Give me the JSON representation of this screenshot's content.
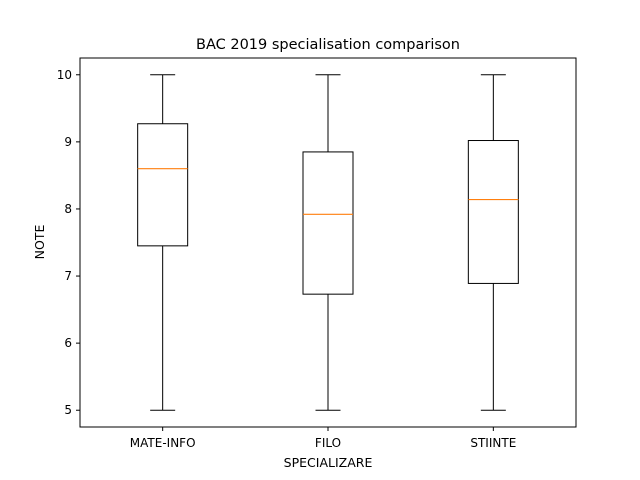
{
  "chart_data": {
    "type": "box",
    "title": "BAC 2019 specialisation comparison",
    "xlabel": "SPECIALIZARE",
    "ylabel": "NOTE",
    "ylim": [
      4.75,
      10.25
    ],
    "yticks": [
      5,
      6,
      7,
      8,
      9,
      10
    ],
    "categories": [
      "MATE-INFO",
      "FILO",
      "STIINTE"
    ],
    "boxes": [
      {
        "category": "MATE-INFO",
        "min": 5,
        "q1": 7.45,
        "median": 8.6,
        "q3": 9.27,
        "max": 10
      },
      {
        "category": "FILO",
        "min": 5,
        "q1": 6.73,
        "median": 7.92,
        "q3": 8.85,
        "max": 10
      },
      {
        "category": "STIINTE",
        "min": 5,
        "q1": 6.89,
        "median": 8.14,
        "q3": 9.02,
        "max": 10
      }
    ],
    "grid": false,
    "colors": {
      "box": "#000000",
      "median": "#ff7f0e"
    }
  }
}
